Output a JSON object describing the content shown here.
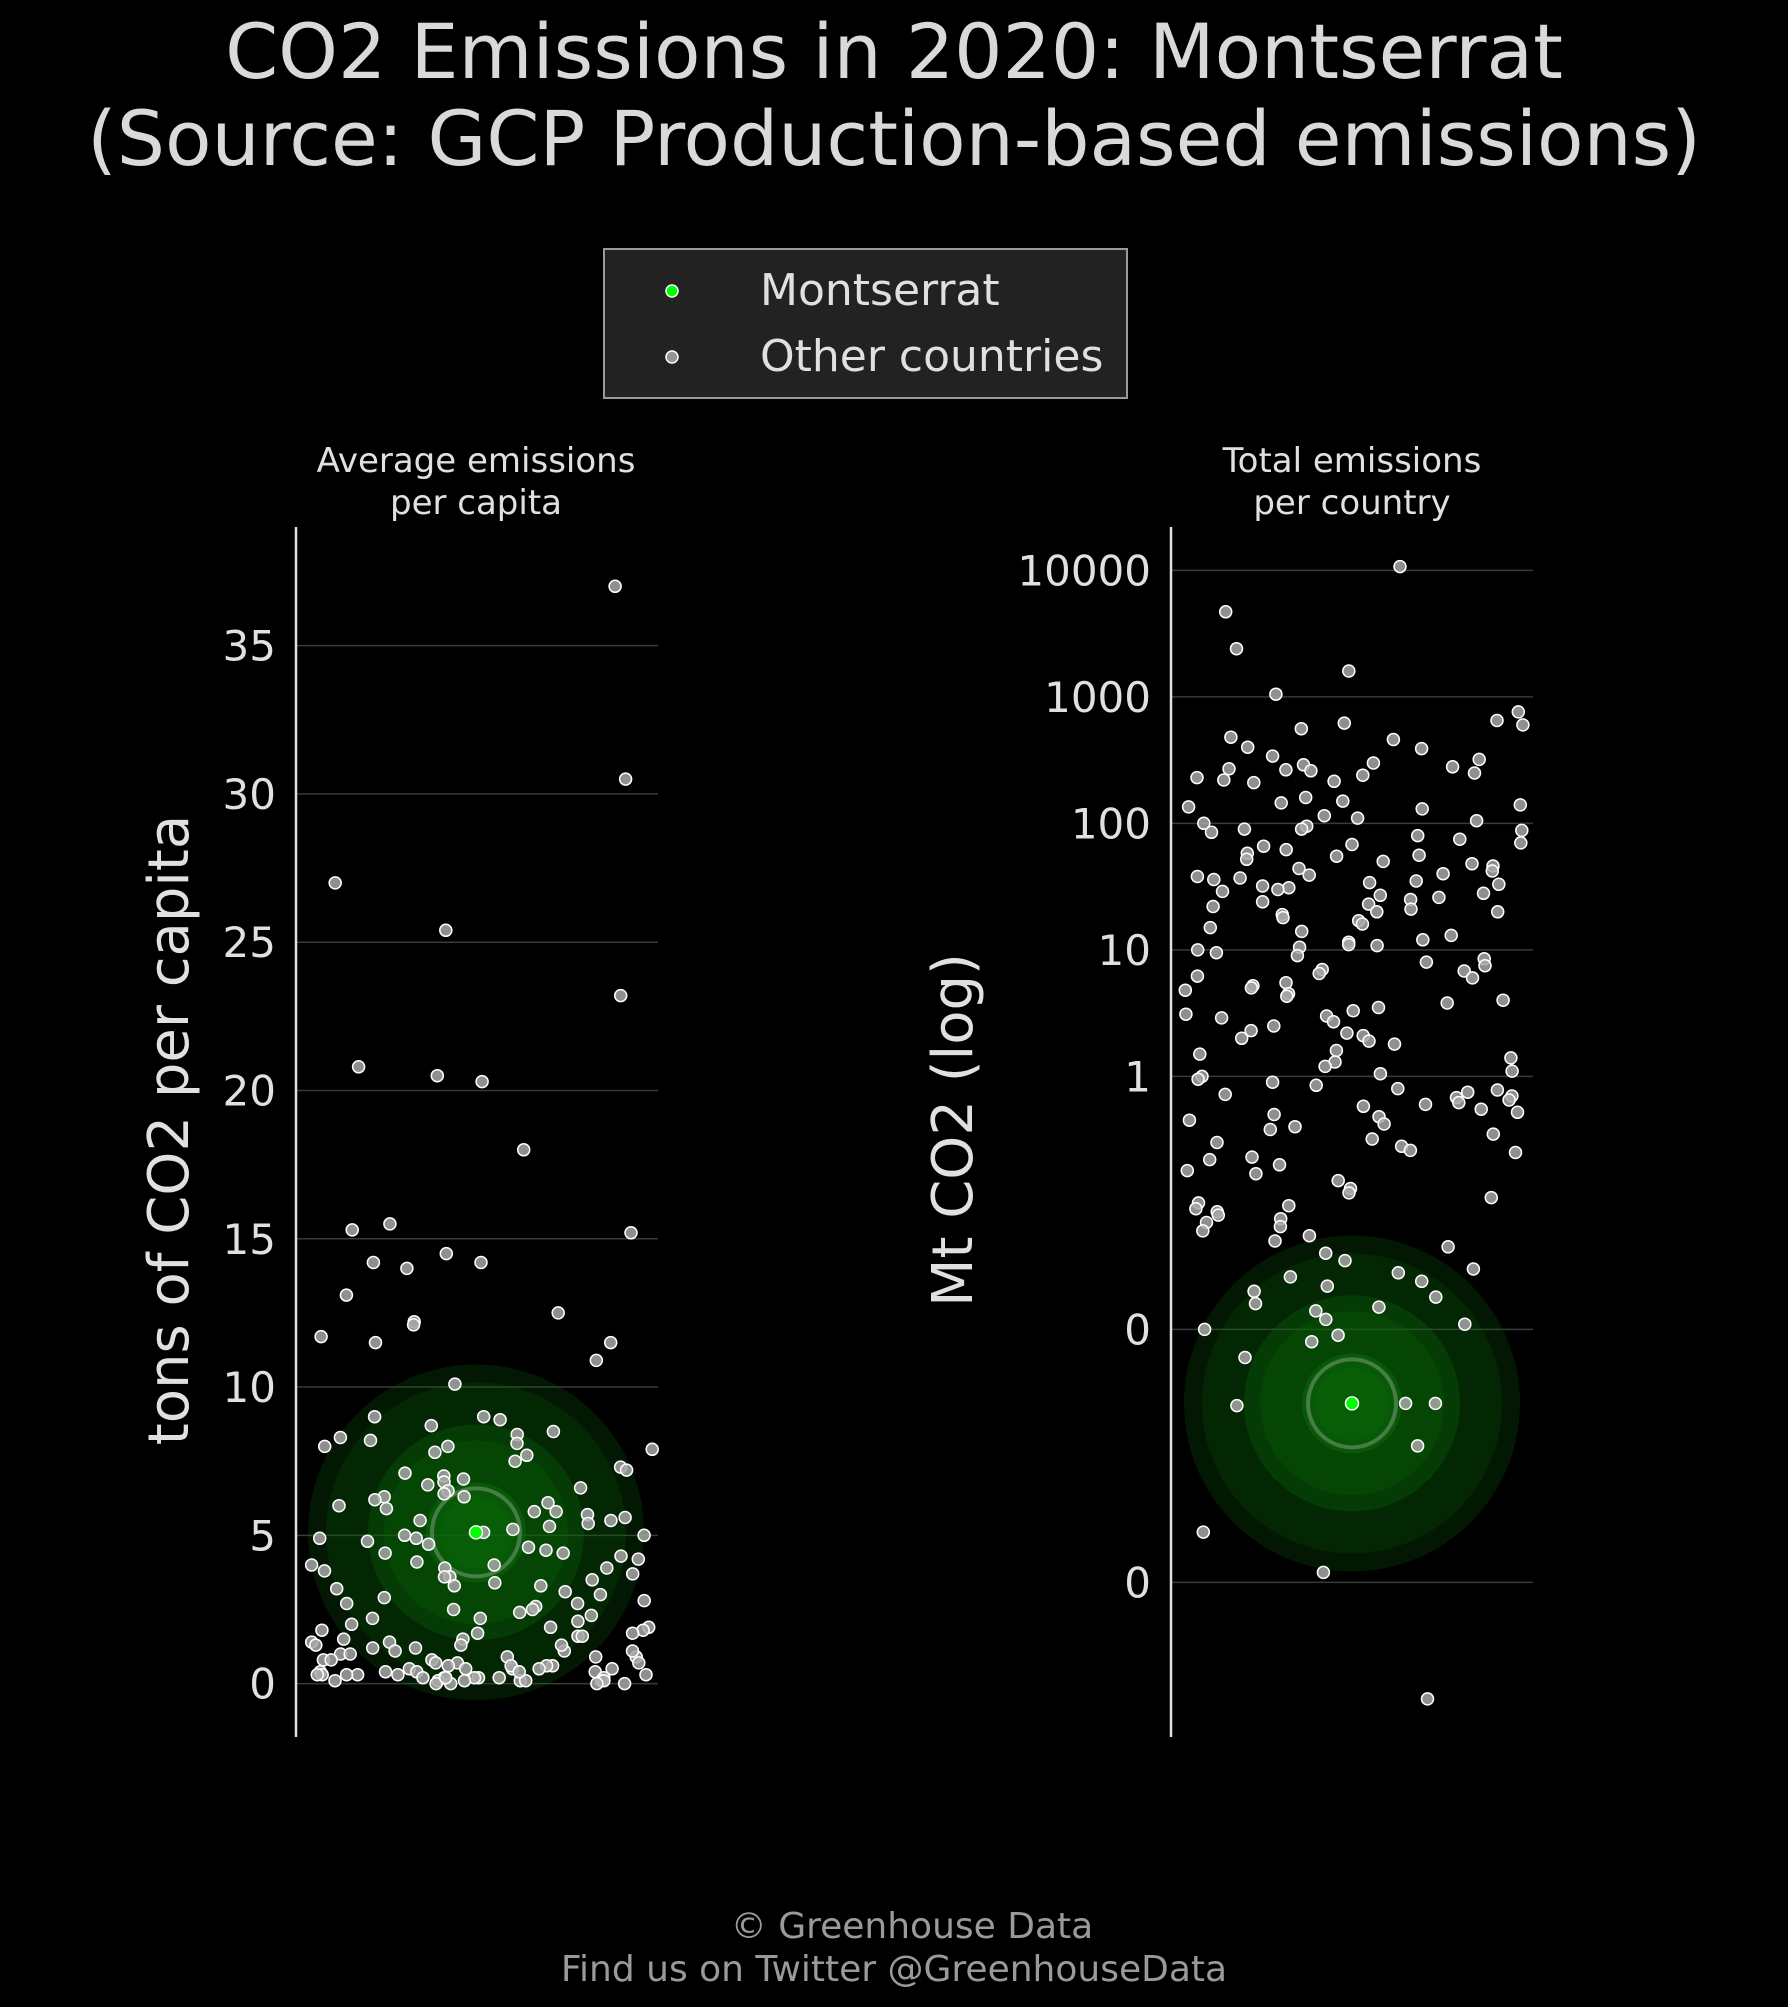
{
  "title_line1": "CO2 Emissions in 2020: Montserrat",
  "title_line2": "(Source: GCP Production-based emissions)",
  "legend": {
    "focus_label": "Montserrat",
    "other_label": "Other countries"
  },
  "footer": {
    "line1": "© Greenhouse Data",
    "line2": "Find us on Twitter @GreenhouseData"
  },
  "colors": {
    "background": "#000000",
    "focus": "#00ff00",
    "other": "#a8a8a8",
    "halo": "#0a5c0a",
    "text": "#d9d9d9"
  },
  "chart_data": [
    {
      "type": "scatter",
      "subtitle_line1": "Average emissions",
      "subtitle_line2": "per capita",
      "ylabel": "tons of CO2 per capita",
      "ylim": [
        -1.8,
        39
      ],
      "yticks": [
        0,
        5,
        10,
        15,
        20,
        25,
        30,
        35
      ],
      "ytick_labels": [
        "0",
        "5",
        "10",
        "15",
        "20",
        "25",
        "30",
        "35"
      ],
      "grid": true,
      "highlight": {
        "name": "Montserrat",
        "value": 5.1
      },
      "other_values": [
        37.0,
        30.5,
        27.0,
        25.4,
        23.2,
        20.8,
        20.5,
        20.3,
        18.0,
        15.5,
        15.3,
        15.2,
        14.5,
        14.2,
        14.2,
        14.0,
        13.1,
        12.5,
        12.2,
        12.1,
        11.7,
        11.5,
        11.5,
        10.9,
        10.1,
        9.0,
        8.9,
        8.7,
        8.5,
        8.4,
        8.3,
        8.2,
        8.0,
        8.0,
        7.9,
        7.8,
        7.7,
        7.5,
        7.3,
        7.1,
        7.0,
        6.9,
        6.8,
        6.6,
        6.5,
        6.4,
        6.3,
        6.2,
        6.1,
        6.0,
        5.9,
        5.8,
        5.7,
        5.6,
        5.5,
        5.4,
        5.3,
        5.2,
        5.1,
        5.0,
        5.0,
        4.9,
        4.8,
        4.7,
        4.6,
        4.5,
        4.4,
        4.3,
        4.2,
        4.1,
        4.0,
        3.9,
        3.8,
        3.7,
        3.6,
        3.5,
        3.4,
        3.3,
        3.2,
        3.1,
        3.0,
        2.9,
        2.8,
        2.7,
        2.6,
        2.5,
        2.4,
        2.3,
        2.2,
        2.1,
        2.0,
        1.9,
        1.8,
        1.8,
        1.7,
        1.6,
        1.6,
        1.5,
        1.5,
        1.4,
        1.4,
        1.3,
        1.3,
        1.2,
        1.2,
        1.1,
        1.1,
        1.0,
        1.0,
        0.9,
        0.9,
        0.8,
        0.8,
        0.8,
        0.7,
        0.7,
        0.7,
        0.6,
        0.6,
        0.6,
        0.5,
        0.5,
        0.5,
        0.5,
        0.4,
        0.4,
        0.4,
        0.4,
        0.3,
        0.3,
        0.3,
        0.3,
        0.3,
        0.2,
        0.2,
        0.2,
        0.2,
        0.2,
        0.2,
        0.1,
        0.1,
        0.1,
        0.1,
        0.1,
        0.1,
        0.1,
        0.0,
        0.0,
        0.0,
        0.0,
        6.3,
        5.8,
        4.4,
        3.9,
        2.2,
        1.1,
        0.6,
        2.7,
        3.6,
        4.9,
        7.2,
        9.0,
        8.1,
        6.7,
        1.9,
        1.3,
        0.5,
        0.2,
        0.9,
        3.3,
        4.0,
        5.5,
        2.5,
        1.7,
        0.4,
        0.3
      ]
    },
    {
      "type": "scatter",
      "subtitle_line1": "Total emissions",
      "subtitle_line2": "per country",
      "ylabel": "Mt CO2 (log)",
      "log_scale": true,
      "ylim": [
        6e-06,
        22000
      ],
      "yticks": [
        0.0001,
        0.01,
        1,
        10,
        100,
        1000,
        10000
      ],
      "ytick_labels": [
        "0",
        "0",
        "1",
        "10",
        "100",
        "1000",
        "10000"
      ],
      "grid": true,
      "highlight": {
        "name": "Montserrat",
        "value": 0.0026
      },
      "other_values": [
        10700,
        4700,
        2400,
        1600,
        1050,
        760,
        650,
        620,
        600,
        560,
        480,
        460,
        400,
        390,
        340,
        320,
        300,
        290,
        280,
        270,
        265,
        260,
        250,
        240,
        230,
        220,
        215,
        210,
        160,
        150,
        145,
        140,
        135,
        130,
        115,
        110,
        105,
        100,
        95,
        90,
        90,
        88,
        85,
        80,
        75,
        70,
        68,
        66,
        62,
        58,
        56,
        55,
        52,
        50,
        48,
        46,
        44,
        42,
        40,
        39,
        38,
        37,
        36,
        35,
        34,
        33,
        32,
        31,
        30,
        29,
        28,
        27,
        26,
        25,
        24,
        23,
        22,
        21,
        20,
        20,
        19,
        18,
        17,
        16,
        15,
        14,
        13,
        12,
        11.5,
        11,
        10.8,
        10.5,
        10,
        9.5,
        9,
        8.5,
        8,
        7.5,
        7,
        6.8,
        6.5,
        6.2,
        6,
        5.5,
        5.2,
        5,
        4.8,
        4.5,
        4.3,
        4,
        3.8,
        3.5,
        3.3,
        3.1,
        3,
        2.9,
        2.7,
        2.5,
        2.3,
        2.2,
        2.1,
        2,
        1.9,
        1.8,
        1.6,
        1.5,
        1.4,
        1.3,
        1.2,
        1.1,
        1.05,
        1.0,
        0.95,
        0.9,
        0.85,
        0.8,
        0.78,
        0.75,
        0.72,
        0.7,
        0.68,
        0.65,
        0.62,
        0.6,
        0.58,
        0.55,
        0.52,
        0.5,
        0.48,
        0.45,
        0.42,
        0.4,
        0.38,
        0.35,
        0.32,
        0.3,
        0.28,
        0.26,
        0.25,
        0.23,
        0.22,
        0.2,
        0.18,
        0.17,
        0.15,
        0.13,
        0.12,
        0.11,
        0.1,
        0.095,
        0.09,
        0.085,
        0.08,
        0.075,
        0.07,
        0.065,
        0.06,
        0.055,
        0.05,
        0.045,
        0.04,
        0.035,
        0.03,
        0.028,
        0.026,
        0.024,
        0.022,
        0.02,
        0.018,
        0.016,
        0.015,
        0.014,
        0.012,
        0.011,
        0.01,
        0.009,
        0.008,
        0.006,
        0.0026,
        0.0026,
        0.0025,
        0.0012,
        0.00025,
        0.00012,
        1.2e-05
      ]
    }
  ]
}
